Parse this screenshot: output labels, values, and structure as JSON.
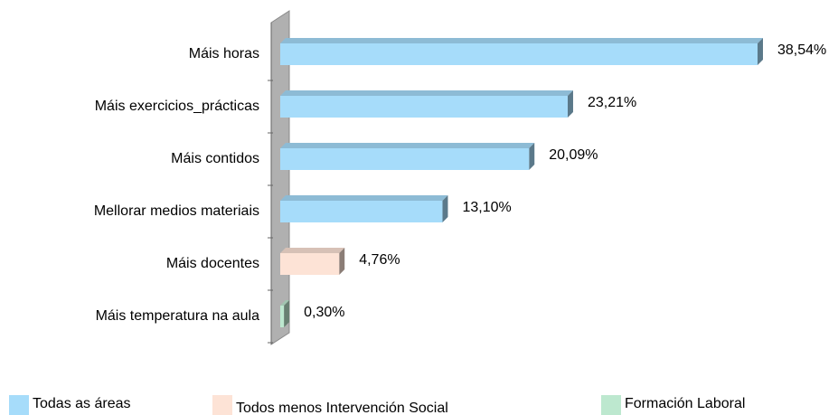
{
  "chart_data": {
    "type": "bar",
    "orientation": "horizontal",
    "categories": [
      "Máis horas",
      "Máis exercicios_prácticas",
      "Máis contidos",
      "Mellorar medios materiais",
      "Máis docentes",
      "Máis temperatura na aula"
    ],
    "series": [
      {
        "name": "Todas as áreas",
        "color": "#a6dcfa",
        "values": [
          38.54,
          23.21,
          20.09,
          13.1,
          null,
          null
        ],
        "value_labels": [
          "38,54%",
          "23,21%",
          "20,09%",
          "13,10%",
          null,
          null
        ]
      },
      {
        "name": "Todos menos Intervención Social",
        "color": "#fde3d6",
        "values": [
          null,
          null,
          null,
          null,
          4.76,
          null
        ],
        "value_labels": [
          null,
          null,
          null,
          null,
          "4,76%",
          null
        ]
      },
      {
        "name": "Formación Laboral",
        "color": "#bde8cf",
        "values": [
          null,
          null,
          null,
          null,
          null,
          0.3
        ],
        "value_labels": [
          null,
          null,
          null,
          null,
          null,
          "0,30%"
        ]
      }
    ],
    "xlim": [
      0,
      40
    ]
  }
}
